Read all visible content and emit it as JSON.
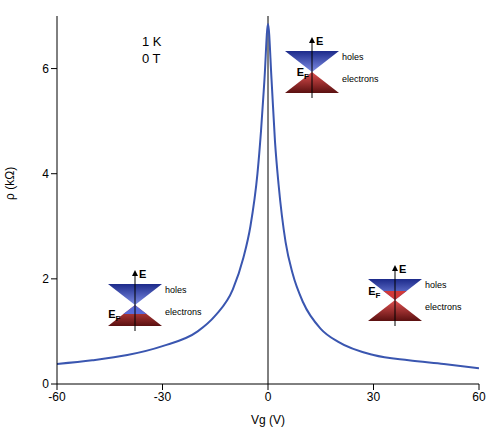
{
  "chart_data": {
    "type": "line",
    "x_label": "Vg (V)",
    "y_label": "ρ (kΩ)",
    "x": [
      -60,
      -50,
      -40,
      -30,
      -20,
      -15,
      -10,
      -7,
      -5,
      -3,
      -2,
      -1,
      0,
      1,
      2,
      3,
      5,
      7,
      10,
      15,
      20,
      30,
      40,
      50,
      60
    ],
    "values": [
      0.38,
      0.45,
      0.55,
      0.72,
      1.0,
      1.3,
      1.8,
      2.4,
      3.0,
      4.0,
      4.8,
      5.8,
      6.85,
      5.8,
      4.6,
      3.8,
      2.7,
      2.1,
      1.55,
      1.05,
      0.8,
      0.55,
      0.45,
      0.38,
      0.3
    ],
    "color": "#3a56b0",
    "xlim": [
      -60,
      60
    ],
    "xticks": [
      -60,
      -30,
      0,
      30,
      60
    ],
    "ylim": [
      0,
      7
    ],
    "yticks": [
      0,
      2,
      4,
      6
    ],
    "grid": false,
    "reference_x": 0,
    "annotations": [
      "1 K",
      "0 T"
    ],
    "insets": [
      {
        "energy": "E",
        "fermi": "EF",
        "upper_band": "holes",
        "lower_band": "electrons"
      },
      {
        "energy": "E",
        "fermi": "EF",
        "upper_band": "holes",
        "lower_band": "electrons"
      },
      {
        "energy": "E",
        "fermi": "EF",
        "upper_band": "holes",
        "lower_band": "electrons"
      }
    ]
  }
}
